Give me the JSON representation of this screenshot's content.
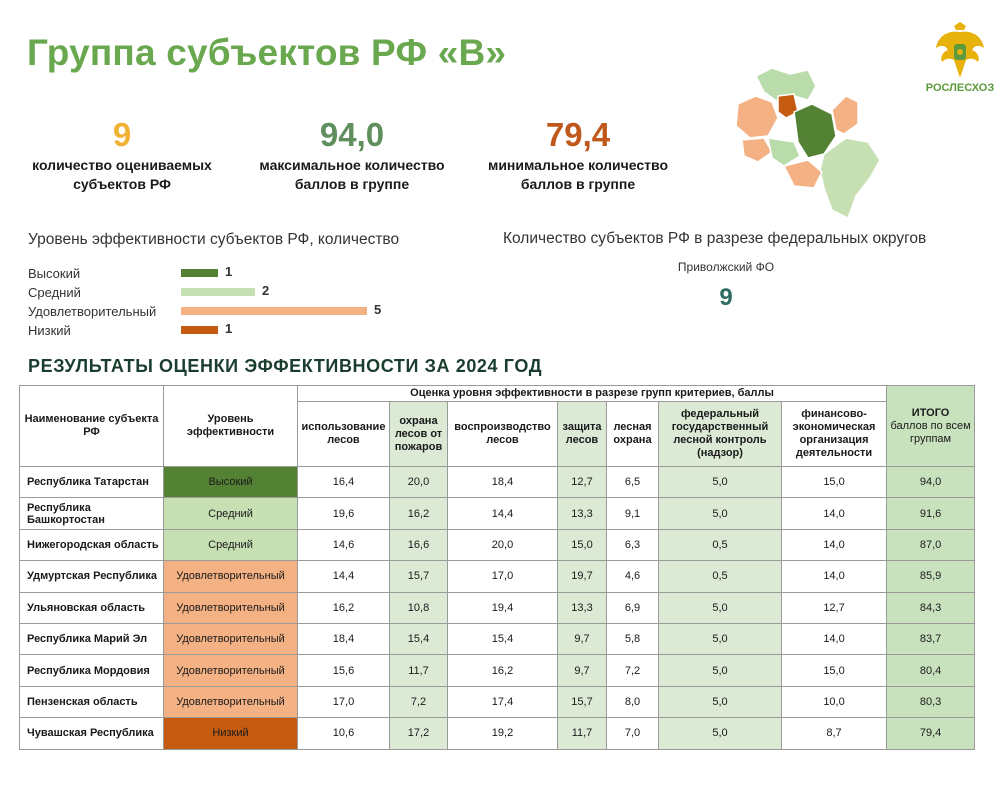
{
  "title": "Группа субъектов РФ «В»",
  "logo": {
    "text": "РОСЛЕСХОЗ"
  },
  "stats": [
    {
      "value": "9",
      "label": "количество оцениваемых субъектов РФ"
    },
    {
      "value": "94,0",
      "label": "максимальное количество баллов в группе"
    },
    {
      "value": "79,4",
      "label": "минимальное количество баллов в группе"
    }
  ],
  "efficiency_section_title": "Уровень эффективности субъектов РФ, количество",
  "district_section_title": "Количество субъектов РФ в разрезе федеральных округов",
  "district": {
    "name": "Приволжский  ФО",
    "count": "9"
  },
  "chart_data": {
    "type": "bar",
    "orientation": "horizontal",
    "title": "Уровень эффективности субъектов РФ, количество",
    "categories": [
      "Высокий",
      "Средний",
      "Удовлетворительный",
      "Низкий"
    ],
    "values": [
      1,
      2,
      5,
      1
    ],
    "colors": [
      "#548235",
      "#c6e0b4",
      "#f4b183",
      "#c55a11"
    ],
    "xlim": [
      0,
      5
    ],
    "grid": false,
    "legend": false
  },
  "results_title": "РЕЗУЛЬТАТЫ ОЦЕНКИ ЭФФЕКТИВНОСТИ  ЗА 2024 ГОД",
  "table": {
    "col_name": "Наименование субъекта РФ",
    "col_level": "Уровень эффективности",
    "group_header": "Оценка уровня эффективности в разрезе групп критериев, баллы",
    "sub_headers": [
      "использование лесов",
      "охрана лесов от пожаров",
      "воспроизводство лесов",
      "защита лесов",
      "лесная охрана",
      "федеральный государственный лесной контроль (надзор)",
      "финансово-экономическая организация деятельности"
    ],
    "col_total_title": "ИТОГО",
    "col_total_sub": "баллов по всем группам",
    "rows": [
      {
        "name": "Республика Татарстан",
        "level": "Высокий",
        "level_key": "high",
        "scores": [
          "16,4",
          "20,0",
          "18,4",
          "12,7",
          "6,5",
          "5,0",
          "15,0"
        ],
        "total": "94,0"
      },
      {
        "name": "Республика Башкортостан",
        "level": "Средний",
        "level_key": "mid",
        "scores": [
          "19,6",
          "16,2",
          "14,4",
          "13,3",
          "9,1",
          "5,0",
          "14,0"
        ],
        "total": "91,6"
      },
      {
        "name": "Нижегородская область",
        "level": "Средний",
        "level_key": "mid",
        "scores": [
          "14,6",
          "16,6",
          "20,0",
          "15,0",
          "6,3",
          "0,5",
          "14,0"
        ],
        "total": "87,0"
      },
      {
        "name": "Удмуртская Республика",
        "level": "Удовлетворительный",
        "level_key": "sat",
        "scores": [
          "14,4",
          "15,7",
          "17,0",
          "19,7",
          "4,6",
          "0,5",
          "14,0"
        ],
        "total": "85,9"
      },
      {
        "name": "Ульяновская область",
        "level": "Удовлетворительный",
        "level_key": "sat",
        "scores": [
          "16,2",
          "10,8",
          "19,4",
          "13,3",
          "6,9",
          "5,0",
          "12,7"
        ],
        "total": "84,3"
      },
      {
        "name": "Республика Марий Эл",
        "level": "Удовлетворительный",
        "level_key": "sat",
        "scores": [
          "18,4",
          "15,4",
          "15,4",
          "9,7",
          "5,8",
          "5,0",
          "14,0"
        ],
        "total": "83,7"
      },
      {
        "name": "Республика Мордовия",
        "level": "Удовлетворительный",
        "level_key": "sat",
        "scores": [
          "15,6",
          "11,7",
          "16,2",
          "9,7",
          "7,2",
          "5,0",
          "15,0"
        ],
        "total": "80,4"
      },
      {
        "name": "Пензенская область",
        "level": "Удовлетворительный",
        "level_key": "sat",
        "scores": [
          "17,0",
          "7,2",
          "17,4",
          "15,7",
          "8,0",
          "5,0",
          "10,0"
        ],
        "total": "80,3"
      },
      {
        "name": "Чувашская Республика",
        "level": "Низкий",
        "level_key": "low",
        "scores": [
          "10,6",
          "17,2",
          "19,2",
          "11,7",
          "7,0",
          "5,0",
          "8,7"
        ],
        "total": "79,4"
      }
    ]
  }
}
